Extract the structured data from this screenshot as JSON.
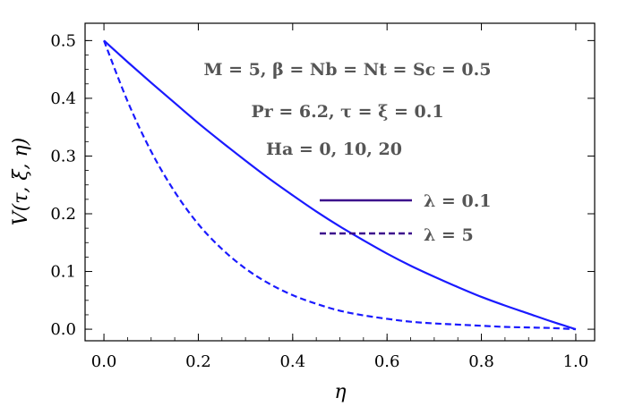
{
  "chart_data": {
    "type": "line",
    "xlabel": "η",
    "ylabel": "V(τ, ξ, η)",
    "xlim": [
      -0.04,
      1.04
    ],
    "ylim": [
      -0.02,
      0.53
    ],
    "xticks": [
      "0.0",
      "0.2",
      "0.4",
      "0.6",
      "0.8",
      "1.0"
    ],
    "xtick_values": [
      0,
      0.2,
      0.4,
      0.6,
      0.8,
      1.0
    ],
    "yticks": [
      "0.0",
      "0.1",
      "0.2",
      "0.3",
      "0.4",
      "0.5"
    ],
    "ytick_values": [
      0,
      0.1,
      0.2,
      0.3,
      0.4,
      0.5
    ],
    "grid": false,
    "legend_placement": "center-right",
    "annotations": [
      "M = 5, β = Nb = Nt = Sc = 0.5",
      "Pr = 6.2, τ = ξ = 0.1",
      "Ha = 0, 10, 20"
    ],
    "series": [
      {
        "name": "λ = 0.1",
        "style": "solid",
        "color": "#1a1aff",
        "legend_color": "#3b0a8c",
        "x": [
          0,
          0.05,
          0.1,
          0.15,
          0.2,
          0.25,
          0.3,
          0.35,
          0.4,
          0.45,
          0.5,
          0.55,
          0.6,
          0.65,
          0.7,
          0.75,
          0.8,
          0.85,
          0.9,
          0.95,
          1.0
        ],
        "y": [
          0.5,
          0.463,
          0.427,
          0.392,
          0.357,
          0.324,
          0.292,
          0.261,
          0.232,
          0.204,
          0.178,
          0.154,
          0.131,
          0.11,
          0.091,
          0.073,
          0.056,
          0.041,
          0.027,
          0.013,
          0.0
        ]
      },
      {
        "name": "λ = 5",
        "style": "dashed",
        "color": "#1a1aff",
        "legend_color": "#3b0a8c",
        "x": [
          0,
          0.05,
          0.1,
          0.15,
          0.2,
          0.25,
          0.3,
          0.35,
          0.4,
          0.45,
          0.5,
          0.55,
          0.6,
          0.65,
          0.7,
          0.75,
          0.8,
          0.85,
          0.9,
          0.95,
          1.0
        ],
        "y": [
          0.5,
          0.395,
          0.308,
          0.238,
          0.182,
          0.139,
          0.105,
          0.079,
          0.059,
          0.044,
          0.032,
          0.024,
          0.018,
          0.013,
          0.01,
          0.008,
          0.006,
          0.004,
          0.003,
          0.002,
          0.0
        ]
      }
    ]
  }
}
